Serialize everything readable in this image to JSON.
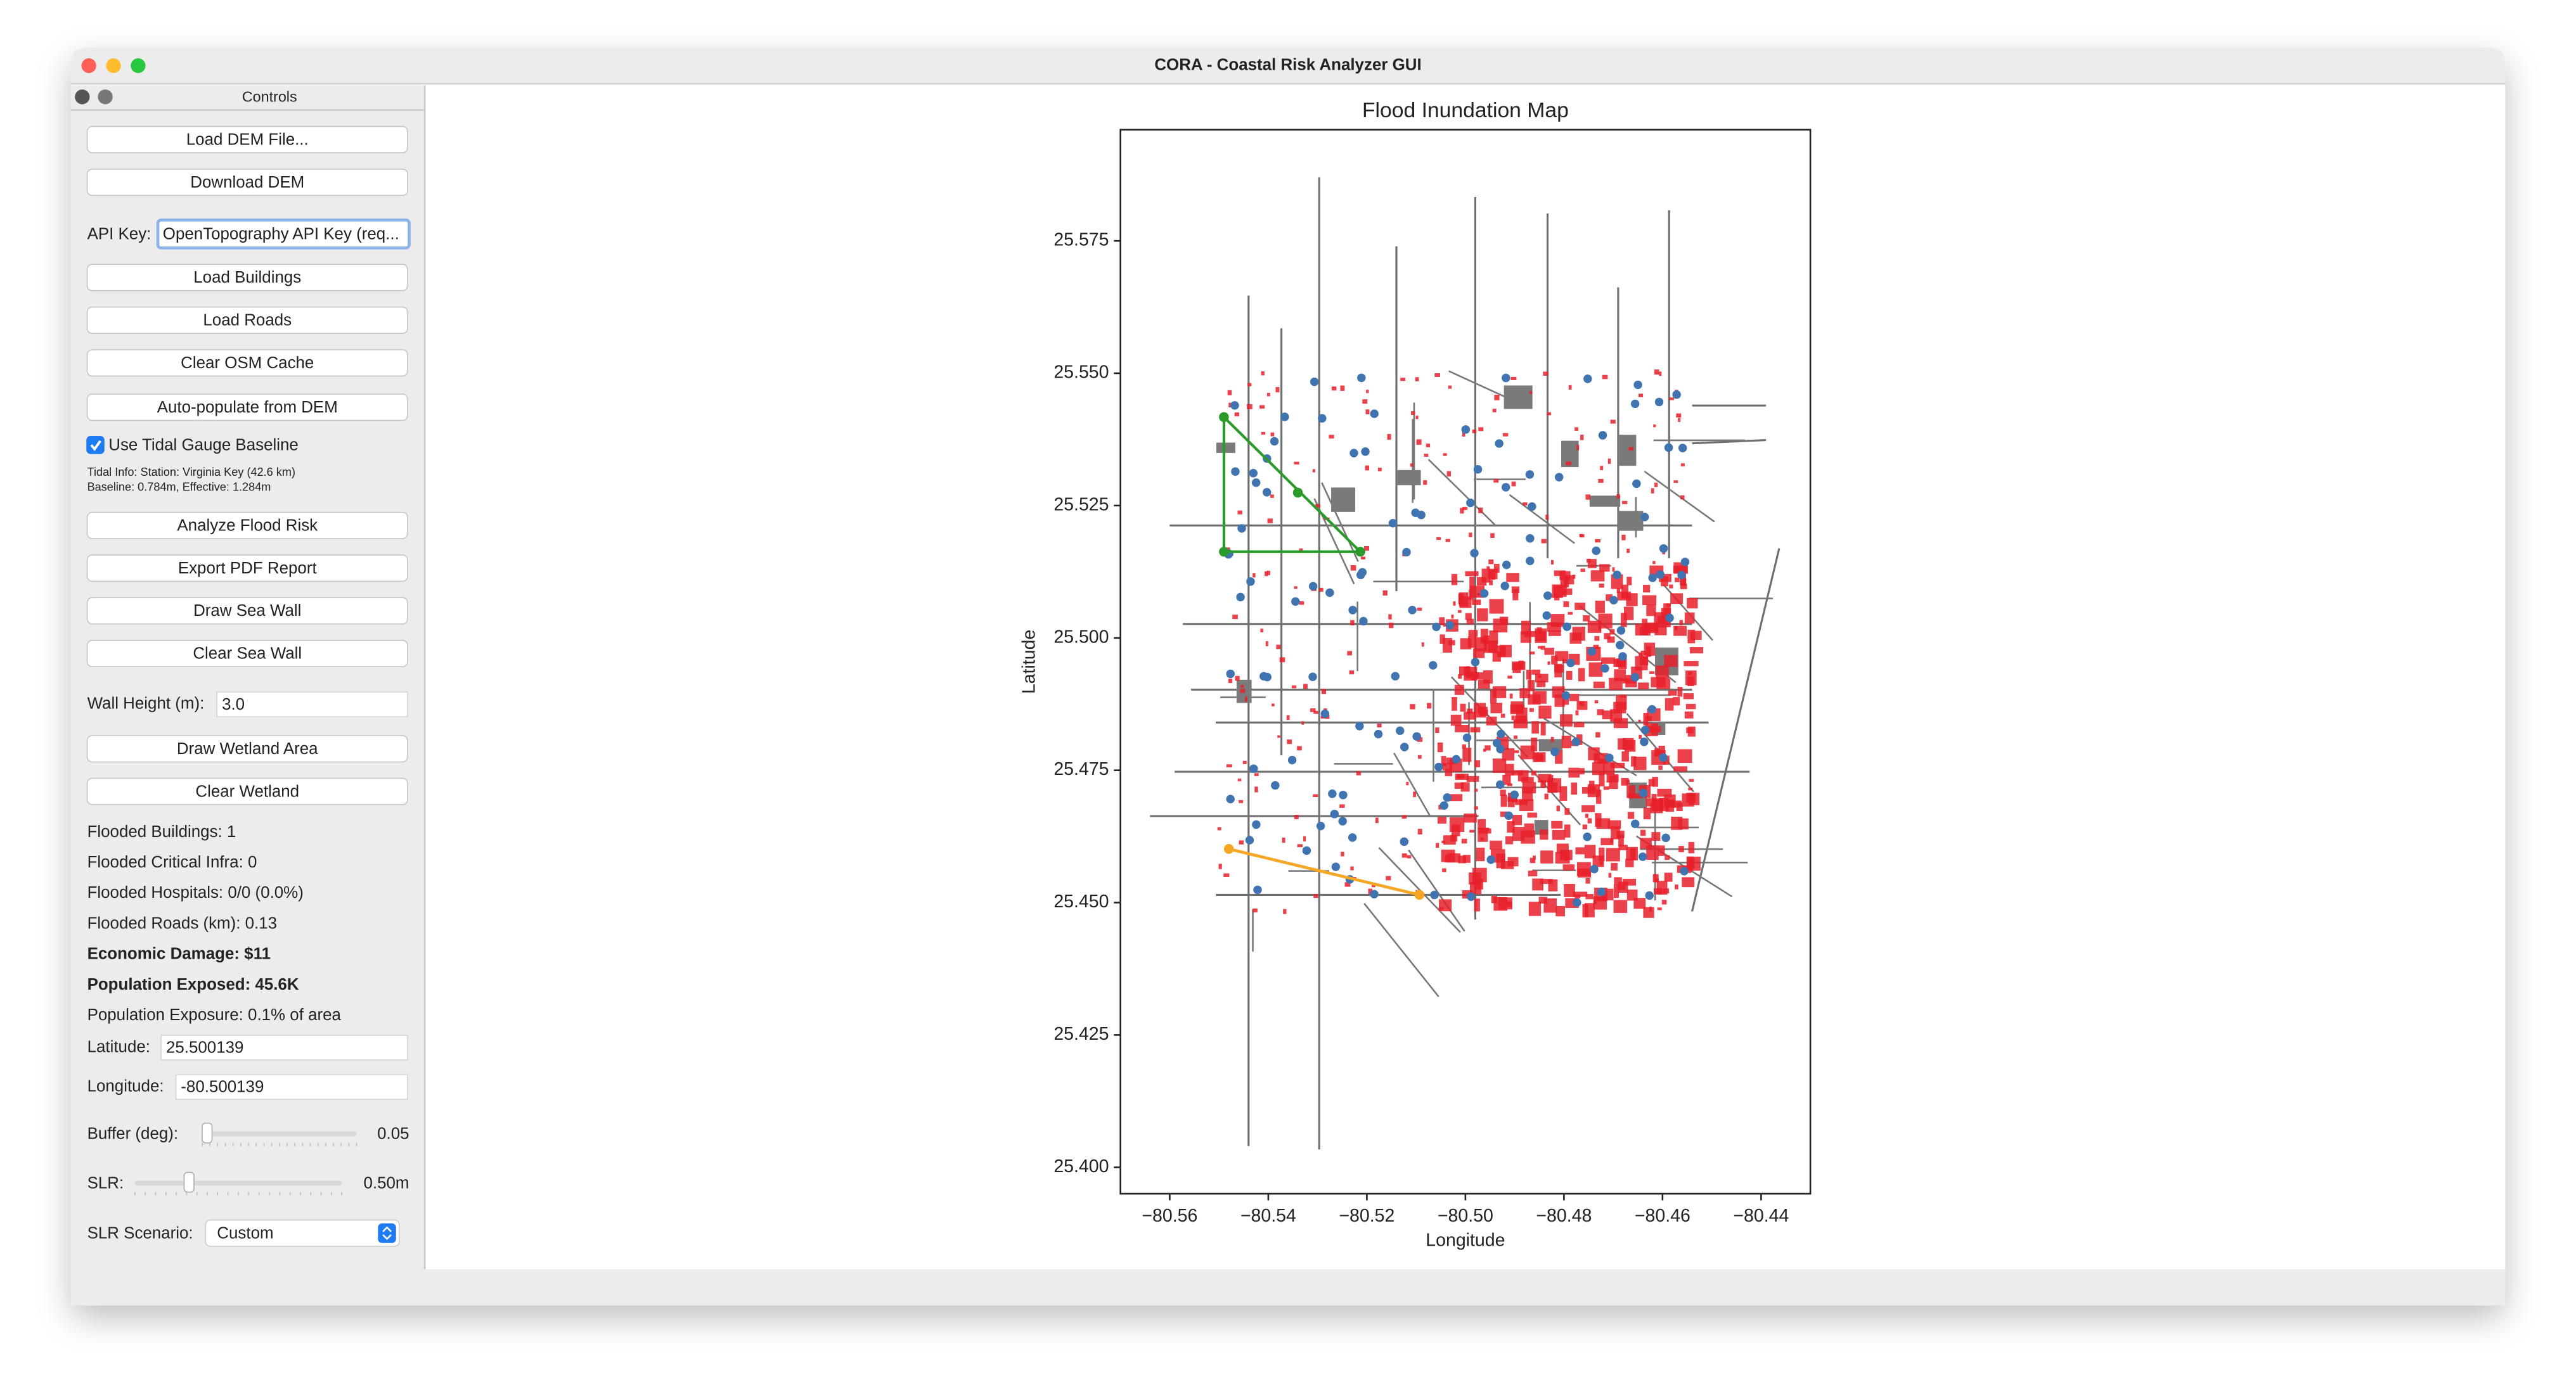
{
  "window": {
    "title": "CORA - Coastal Risk Analyzer GUI"
  },
  "controls": {
    "title": "Controls",
    "buttons": [
      "Load DEM File...",
      "Download DEM",
      "Load Buildings",
      "Load Roads",
      "Clear OSM Cache",
      "Auto-populate from DEM",
      "Analyze Flood Risk",
      "Export PDF Report",
      "Draw Sea Wall",
      "Clear Sea Wall",
      "Draw Wetland Area",
      "Clear Wetland"
    ],
    "api_key": {
      "label": "API Key:",
      "placeholder": "OpenTopography API Key (req..."
    },
    "tidal": {
      "checkbox_label": "Use Tidal Gauge Baseline",
      "checked": true,
      "info": [
        "Tidal Info: Station: Virginia Key (42.6 km)",
        "Baseline: 0.784m, Effective: 1.284m"
      ]
    },
    "wall_height": {
      "label": "Wall Height (m):",
      "value": "3.0"
    },
    "stats": [
      {
        "text": "Flooded Buildings: 1"
      },
      {
        "text": "Flooded Critical Infra: 0"
      },
      {
        "text": "Flooded Hospitals: 0/0 (0.0%)"
      },
      {
        "text": "Flooded Roads (km): 0.13"
      },
      {
        "text": "Economic Damage: $11",
        "color": "#d32f2f"
      },
      {
        "text": "Population Exposed: 45.6K",
        "color": "#1e6fc0"
      },
      {
        "text": "Population Exposure: 0.1% of area"
      }
    ],
    "latitude": {
      "label": "Latitude:",
      "value": "25.500139"
    },
    "longitude": {
      "label": "Longitude:",
      "value": "-80.500139"
    },
    "buffer": {
      "label": "Buffer (deg):",
      "value": "0.05"
    },
    "slr": {
      "label": "SLR:",
      "value": "0.50m"
    },
    "scenario": {
      "label": "SLR Scenario:",
      "value": "Custom"
    }
  },
  "chart_data": {
    "type": "map",
    "title": "Flood Inundation Map",
    "xlabel": "Longitude",
    "ylabel": "Latitude",
    "xlim": [
      -80.57,
      -80.43
    ],
    "ylim": [
      25.395,
      25.596
    ],
    "xticks": [
      {
        "value": -80.56,
        "label": "−80.56"
      },
      {
        "value": -80.54,
        "label": "−80.54"
      },
      {
        "value": -80.52,
        "label": "−80.52"
      },
      {
        "value": -80.5,
        "label": "−80.50"
      },
      {
        "value": -80.48,
        "label": "−80.48"
      },
      {
        "value": -80.46,
        "label": "−80.46"
      },
      {
        "value": -80.44,
        "label": "−80.44"
      }
    ],
    "yticks": [
      {
        "value": 25.4,
        "label": "25.400"
      },
      25.425,
      {
        "value": 25.45,
        "label": "25.450"
      },
      25.475,
      {
        "value": 25.5,
        "label": "25.500"
      },
      25.525,
      {
        "value": 25.55,
        "label": "25.550"
      },
      25.575
    ]
  }
}
